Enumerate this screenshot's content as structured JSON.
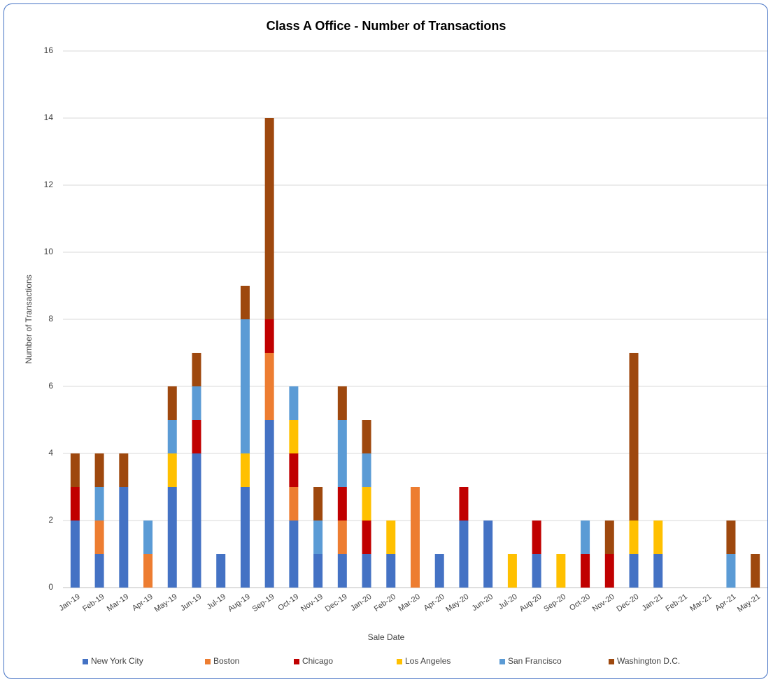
{
  "chart_data": {
    "type": "stacked_bar",
    "title": "Class A Office - Number of Transactions",
    "x_label": "Sale Date",
    "y_label": "Number of Transactions",
    "categories": [
      "Jan-19",
      "Feb-19",
      "Mar-19",
      "Apr-19",
      "May-19",
      "Jun-19",
      "Jul-19",
      "Aug-19",
      "Sep-19",
      "Oct-19",
      "Nov-19",
      "Dec-19",
      "Jan-20",
      "Feb-20",
      "Mar-20",
      "Apr-20",
      "May-20",
      "Jun-20",
      "Jul-20",
      "Aug-20",
      "Sep-20",
      "Oct-20",
      "Nov-20",
      "Dec-20",
      "Jan-21",
      "Feb-21",
      "Mar-21",
      "Apr-21",
      "May-21"
    ],
    "series": [
      {
        "name": "New York City",
        "color": "#4472c4",
        "values": [
          2,
          1,
          3,
          0,
          3,
          4,
          1,
          3,
          5,
          2,
          1,
          1,
          1,
          1,
          0,
          1,
          2,
          2,
          0,
          1,
          0,
          0,
          0,
          1,
          1,
          0,
          0,
          0,
          0
        ]
      },
      {
        "name": "Boston",
        "color": "#ed7d31",
        "values": [
          0,
          1,
          0,
          1,
          0,
          0,
          0,
          0,
          2,
          1,
          0,
          1,
          0,
          0,
          3,
          0,
          0,
          0,
          0,
          0,
          0,
          0,
          0,
          0,
          0,
          0,
          0,
          0,
          0
        ]
      },
      {
        "name": "Chicago",
        "color": "#c00000",
        "values": [
          1,
          0,
          0,
          0,
          0,
          1,
          0,
          0,
          1,
          1,
          0,
          1,
          1,
          0,
          0,
          0,
          1,
          0,
          0,
          1,
          0,
          1,
          1,
          0,
          0,
          0,
          0,
          0,
          0
        ]
      },
      {
        "name": "Los Angeles",
        "color": "#ffc000",
        "values": [
          0,
          0,
          0,
          0,
          1,
          0,
          0,
          1,
          0,
          1,
          0,
          0,
          1,
          1,
          0,
          0,
          0,
          0,
          1,
          0,
          1,
          0,
          0,
          1,
          1,
          0,
          0,
          0,
          0
        ]
      },
      {
        "name": "San Francisco",
        "color": "#5b9bd5",
        "values": [
          0,
          1,
          0,
          1,
          1,
          1,
          0,
          4,
          0,
          1,
          1,
          2,
          1,
          0,
          0,
          0,
          0,
          0,
          0,
          0,
          0,
          1,
          0,
          0,
          0,
          0,
          0,
          1,
          0
        ]
      },
      {
        "name": "Washington D.C.",
        "color": "#9e480e",
        "values": [
          1,
          1,
          1,
          0,
          1,
          1,
          0,
          1,
          6,
          0,
          1,
          1,
          1,
          0,
          0,
          0,
          0,
          0,
          0,
          0,
          0,
          0,
          1,
          5,
          0,
          0,
          0,
          1,
          1
        ]
      }
    ],
    "ylim": [
      0,
      16
    ],
    "yticks": [
      0,
      2,
      4,
      6,
      8,
      10,
      12,
      14,
      16
    ],
    "grid": true,
    "legend": "bottom"
  }
}
